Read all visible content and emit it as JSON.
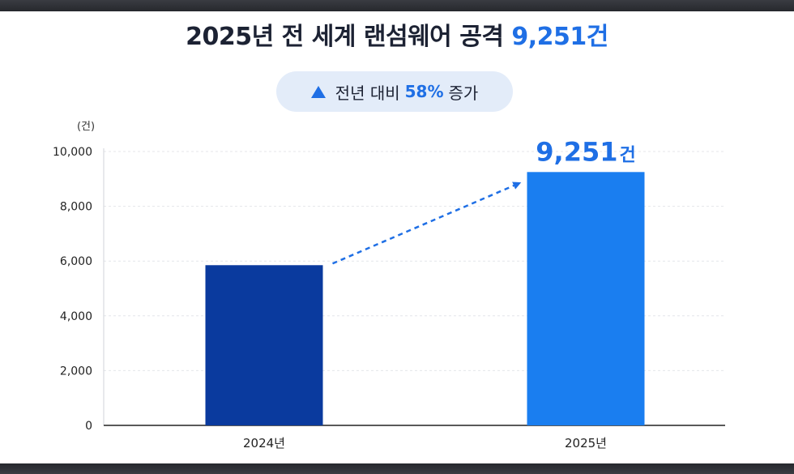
{
  "title": {
    "prefix": "2025년 전 세계 랜섬웨어 공격 ",
    "highlight": "9,251건"
  },
  "badge": {
    "icon": "triangle-up-icon",
    "text_before": "전년 대비",
    "percent": "58%",
    "text_after": "증가"
  },
  "colors": {
    "accent": "#1f6fe5",
    "bar_2024": "#0a3a9e",
    "bar_2025": "#1a7ef0",
    "title": "#1c2233"
  },
  "chart_data": {
    "type": "bar",
    "title": "2025년 전 세계 랜섬웨어 공격 9,251건",
    "unit_label": "(건)",
    "xlabel": "",
    "ylabel": "",
    "categories": [
      "2024년",
      "2025년"
    ],
    "values": [
      5850,
      9251
    ],
    "ylim": [
      0,
      10000
    ],
    "yticks": [
      0,
      2000,
      4000,
      6000,
      8000,
      10000
    ],
    "ytick_labels": [
      "0",
      "2,000",
      "4,000",
      "6,000",
      "8,000",
      "10,000"
    ],
    "data_labels": [
      {
        "category": "2025년",
        "value_text": "9,251",
        "unit": "건"
      }
    ],
    "annotation": "dashed arrow from 2024 bar to 2025 bar",
    "grid": true,
    "legend": "none"
  }
}
